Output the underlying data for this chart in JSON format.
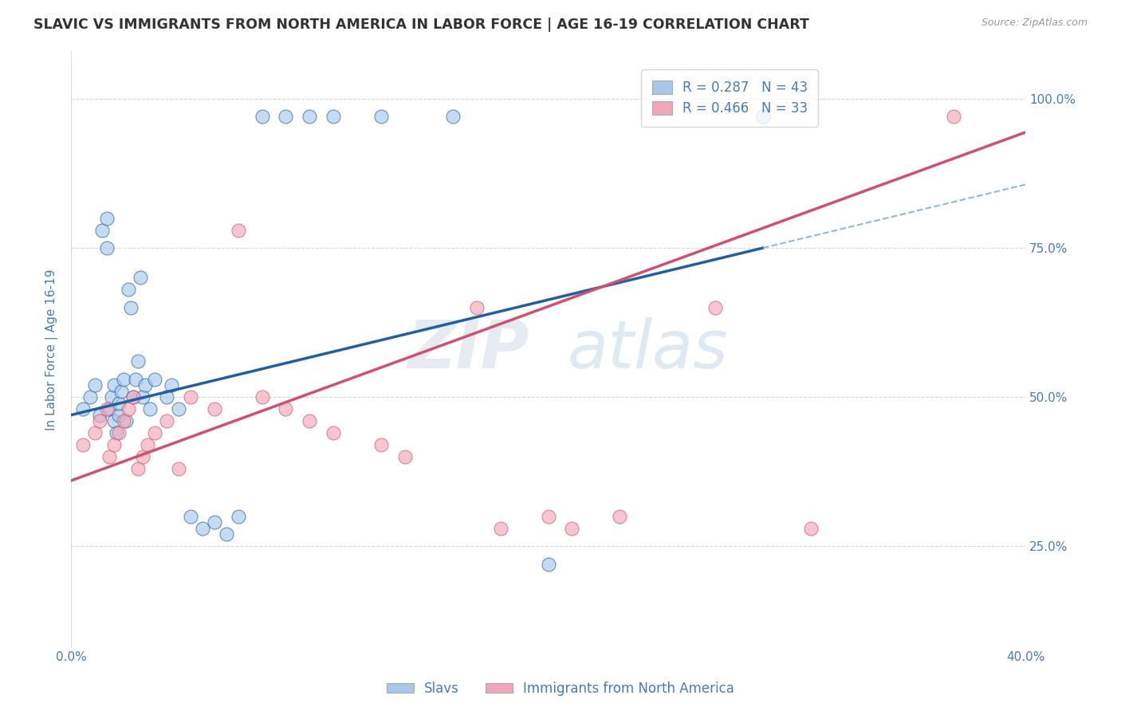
{
  "title": "SLAVIC VS IMMIGRANTS FROM NORTH AMERICA IN LABOR FORCE | AGE 16-19 CORRELATION CHART",
  "source": "Source: ZipAtlas.com",
  "ylabel": "In Labor Force | Age 16-19",
  "r_blue": 0.287,
  "n_blue": 43,
  "r_pink": 0.466,
  "n_pink": 33,
  "color_blue": "#a8c8e8",
  "color_pink": "#f0a8b8",
  "line_blue": "#2060a0",
  "line_pink": "#d05070",
  "line_dashed_color": "#90b8d8",
  "xmin": 0.0,
  "xmax": 0.4,
  "ymin": 0.08,
  "ymax": 1.08,
  "slavs_x": [
    0.005,
    0.008,
    0.01,
    0.012,
    0.013,
    0.015,
    0.015,
    0.016,
    0.017,
    0.018,
    0.018,
    0.019,
    0.02,
    0.02,
    0.021,
    0.022,
    0.023,
    0.024,
    0.025,
    0.026,
    0.027,
    0.028,
    0.029,
    0.03,
    0.031,
    0.033,
    0.035,
    0.04,
    0.042,
    0.045,
    0.05,
    0.055,
    0.06,
    0.065,
    0.07,
    0.08,
    0.09,
    0.1,
    0.11,
    0.13,
    0.16,
    0.2,
    0.29
  ],
  "slavs_y": [
    0.48,
    0.5,
    0.52,
    0.47,
    0.78,
    0.75,
    0.8,
    0.48,
    0.5,
    0.52,
    0.46,
    0.44,
    0.47,
    0.49,
    0.51,
    0.53,
    0.46,
    0.68,
    0.65,
    0.5,
    0.53,
    0.56,
    0.7,
    0.5,
    0.52,
    0.48,
    0.53,
    0.5,
    0.52,
    0.48,
    0.3,
    0.28,
    0.29,
    0.27,
    0.3,
    0.97,
    0.97,
    0.97,
    0.97,
    0.97,
    0.97,
    0.22,
    0.97
  ],
  "immigrants_x": [
    0.005,
    0.01,
    0.012,
    0.015,
    0.016,
    0.018,
    0.02,
    0.022,
    0.024,
    0.026,
    0.028,
    0.03,
    0.032,
    0.035,
    0.04,
    0.045,
    0.05,
    0.06,
    0.07,
    0.08,
    0.09,
    0.1,
    0.11,
    0.13,
    0.14,
    0.17,
    0.18,
    0.2,
    0.21,
    0.23,
    0.27,
    0.31,
    0.37
  ],
  "immigrants_y": [
    0.42,
    0.44,
    0.46,
    0.48,
    0.4,
    0.42,
    0.44,
    0.46,
    0.48,
    0.5,
    0.38,
    0.4,
    0.42,
    0.44,
    0.46,
    0.38,
    0.5,
    0.48,
    0.78,
    0.5,
    0.48,
    0.46,
    0.44,
    0.42,
    0.4,
    0.65,
    0.28,
    0.3,
    0.28,
    0.3,
    0.65,
    0.28,
    0.97
  ],
  "background_color": "#ffffff",
  "grid_color": "#c8d4e0",
  "title_color": "#333333",
  "axis_label_color": "#4a7ab5",
  "tick_color": "#4a7ab5"
}
